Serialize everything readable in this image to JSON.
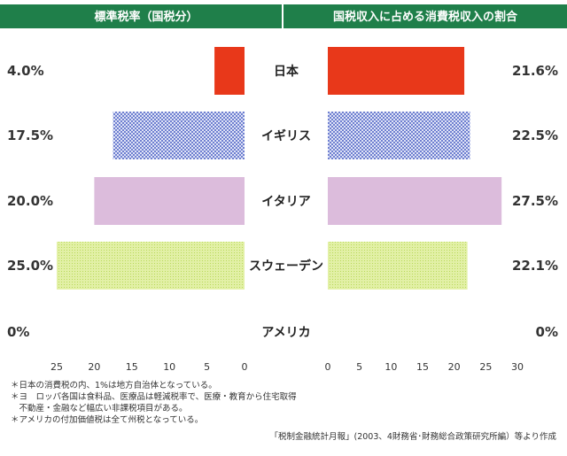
{
  "colors": {
    "header": "#1f7f4a",
    "japan": "#e8381a",
    "uk_pattern_fg": "#6e7fd0",
    "uk_pattern_bg": "#dfe3f6",
    "italy": "#dcbcdc",
    "sweden": "#e2f0a6",
    "sweden_dot": "#b9d95a"
  },
  "chart_data": [
    {
      "type": "bar",
      "title": "標準税率（国税分）",
      "orientation": "horizontal",
      "direction": "right-to-left",
      "categories": [
        "日本",
        "イギリス",
        "イタリア",
        "スウェーデン",
        "アメリカ"
      ],
      "values": [
        4.0,
        17.5,
        20.0,
        25.0,
        0
      ],
      "value_labels": [
        "4.0%",
        "17.5%",
        "20.0%",
        "25.0%",
        "0%"
      ],
      "xlim": [
        0,
        25
      ],
      "ticks": [
        "25",
        "20",
        "15",
        "10",
        "5",
        "0"
      ]
    },
    {
      "type": "bar",
      "title": "国税収入に占める消費税収入の割合",
      "orientation": "horizontal",
      "direction": "left-to-right",
      "categories": [
        "日本",
        "イギリス",
        "イタリア",
        "スウェーデン",
        "アメリカ"
      ],
      "values": [
        21.6,
        22.5,
        27.5,
        22.1,
        0
      ],
      "value_labels": [
        "21.6%",
        "22.5%",
        "27.5%",
        "22.1%",
        "0%"
      ],
      "xlim": [
        0,
        30
      ],
      "ticks": [
        "0",
        "5",
        "10",
        "15",
        "20",
        "25",
        "30"
      ]
    }
  ],
  "notes": [
    "＊日本の消費税の内、1%は地方自治体となっている。",
    "＊ヨ　ロッパ各国は食料品、医療品は軽減税率で、医療・教育から住宅取得",
    "　不動産・金融など幅広い非課税項目がある。",
    "＊アメリカの付加価値税は全て州税となっている。"
  ],
  "source": "「税制金融統計月報」(2003、4財務省･財務総合政策研究所編）等より作成"
}
